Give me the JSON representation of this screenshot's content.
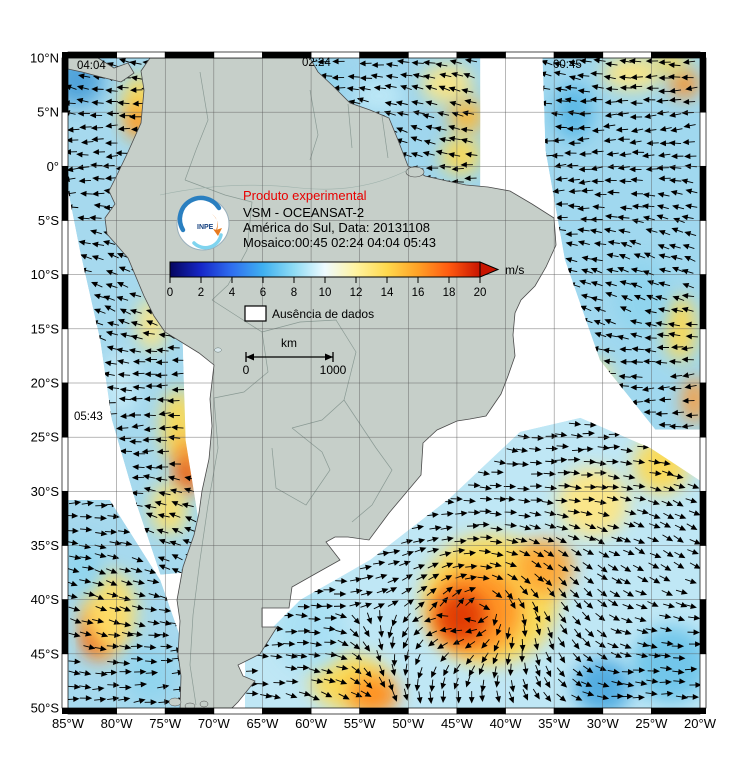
{
  "map": {
    "pass_times": {
      "p0404": "04:04",
      "p0224": "02:24",
      "p0045": "00:45",
      "p0543": "05:43"
    },
    "lat_labels": [
      "10°N",
      "5°N",
      "0°",
      "5°S",
      "10°S",
      "15°S",
      "20°S",
      "25°S",
      "30°S",
      "35°S",
      "40°S",
      "45°S",
      "50°S"
    ],
    "lon_labels": [
      "85°W",
      "80°W",
      "75°W",
      "70°W",
      "65°W",
      "60°W",
      "55°W",
      "50°W",
      "45°W",
      "40°W",
      "35°W",
      "30°W",
      "25°W",
      "20°W"
    ],
    "colorbar_ticks": [
      "0",
      "2",
      "4",
      "6",
      "8",
      "10",
      "12",
      "14",
      "16",
      "18",
      "20"
    ],
    "legend": {
      "experimental": "Produto experimental",
      "line1": "VSM - OCEANSAT-2",
      "line2": "América do Sul, Data: 20131108",
      "line3": "Mosaico:00:45 02:24 04:04 05:43",
      "units": "m/s",
      "nodata": "Ausência de dados",
      "km": "km",
      "scale0": "0",
      "scale1": "1000",
      "logo_text": "INPE"
    },
    "colors": {
      "experimental_text": "#e80000",
      "land": "#c6cfc9",
      "nodata_fill": "#ffffff"
    }
  },
  "chart_data": {
    "type": "map",
    "title": "VSM - OCEANSAT-2 sea-surface wind mosaic, South America, 2013-11-08",
    "projection": {
      "lon_range": [
        -85,
        -20
      ],
      "lat_range": [
        -50,
        10
      ],
      "grid_deg": 5
    },
    "wind_speed_scale": {
      "units": "m/s",
      "min": 0,
      "max": 20,
      "tick_step": 2,
      "palette": [
        [
          "0",
          "#05055e"
        ],
        [
          "2",
          "#1627c8"
        ],
        [
          "4",
          "#2f6ff0"
        ],
        [
          "6",
          "#3fb0f0"
        ],
        [
          "8",
          "#8fdcf4"
        ],
        [
          "10",
          "#eefaff"
        ],
        [
          "12",
          "#fff3a0"
        ],
        [
          "14",
          "#ffd94d"
        ],
        [
          "16",
          "#ffa126"
        ],
        [
          "18",
          "#ff5a10"
        ],
        [
          "20",
          "#c81400"
        ]
      ]
    },
    "swaths": [
      {
        "time": "04:04",
        "base": "#a6d9ee",
        "flow": 190,
        "polygon": [
          [
            -85,
            10
          ],
          [
            -67.3,
            10
          ],
          [
            -69.9,
            2.4
          ],
          [
            -71.9,
            -6.8
          ],
          [
            -73.2,
            -16
          ],
          [
            -72.9,
            -25.3
          ],
          [
            -71.4,
            -33.6
          ],
          [
            -70.4,
            -37.3
          ],
          [
            -75.5,
            -37.7
          ],
          [
            -78.1,
            -30.8
          ],
          [
            -80.5,
            -23.4
          ],
          [
            -81.7,
            -16
          ],
          [
            -83.8,
            -7.7
          ],
          [
            -85,
            -2.2
          ]
        ],
        "blobs": [
          [
            -84,
            8,
            2.6,
            2.4,
            "#4a9fd8"
          ],
          [
            -77.6,
            5.8,
            1.8,
            2.6,
            "#ffd94d"
          ],
          [
            -77.9,
            4.1,
            1.1,
            1.6,
            "#ff8c1a"
          ],
          [
            -74.6,
            -10,
            1.3,
            3,
            "#86d3ec"
          ],
          [
            -76.4,
            -14.6,
            1.5,
            2.4,
            "#ffe680"
          ],
          [
            -73.6,
            -24,
            1.8,
            3.4,
            "#ffd94d"
          ],
          [
            -72.7,
            -27.6,
            1.3,
            2.6,
            "#ff8c1a"
          ],
          [
            -72.9,
            -28.6,
            0.7,
            1.4,
            "#e03500"
          ],
          [
            -74.6,
            -31.6,
            1.8,
            2.4,
            "#ffe066"
          ],
          [
            -79.6,
            -20,
            1.6,
            3,
            "#c8ecf8"
          ]
        ]
      },
      {
        "time": "02:24",
        "base": "#9fd6ee",
        "flow": 183,
        "polygon": [
          [
            -70.9,
            10
          ],
          [
            -42.6,
            10
          ],
          [
            -42.6,
            -2.6
          ],
          [
            -50.9,
            -1.7
          ],
          [
            -58.1,
            3.4
          ],
          [
            -66.3,
            5.2
          ],
          [
            -70.9,
            6.6
          ]
        ],
        "blobs": [
          [
            -46,
            7.6,
            2.6,
            1.8,
            "#ffe680"
          ],
          [
            -44,
            4.6,
            1.8,
            1.6,
            "#ffb833"
          ],
          [
            -44.6,
            1,
            2,
            1.8,
            "#ffd94d"
          ],
          [
            -60,
            8,
            3,
            1.6,
            "#8fd4ee"
          ],
          [
            -53,
            6.5,
            2.5,
            1.5,
            "#bfe9f7"
          ]
        ]
      },
      {
        "time": "00:45",
        "base": "#a0d8ef",
        "flow": 187,
        "polygon": [
          [
            -36.2,
            10
          ],
          [
            -20,
            10
          ],
          [
            -20,
            -24.3
          ],
          [
            -24.6,
            -24.3
          ],
          [
            -30.3,
            -17.9
          ],
          [
            -33.9,
            -8.6
          ],
          [
            -35.9,
            1.5
          ]
        ],
        "blobs": [
          [
            -27,
            8.6,
            3,
            1.6,
            "#ffe680"
          ],
          [
            -21.6,
            7.6,
            1.5,
            1.3,
            "#ff8c1a"
          ],
          [
            -23,
            9.6,
            1.8,
            1,
            "#ffd94d"
          ],
          [
            -33,
            5,
            2,
            2.6,
            "#59b7e6"
          ],
          [
            -22,
            -15,
            1.6,
            3,
            "#ffd94d"
          ],
          [
            -20.6,
            -21.6,
            1.2,
            2.2,
            "#ff9933"
          ],
          [
            -26,
            -12,
            2.6,
            3.6,
            "#8fd4ee"
          ],
          [
            -30.6,
            -20,
            1.6,
            2.2,
            "#ffe680"
          ]
        ]
      },
      {
        "time": "00:45",
        "base": "#bfe7f5",
        "flow": 15,
        "vortex": {
          "center": [
            -42.5,
            -41
          ],
          "radius_deg": 14
        },
        "polygon": [
          [
            -20,
            -29
          ],
          [
            -20,
            -50.2
          ],
          [
            -66.8,
            -50.2
          ],
          [
            -66.8,
            -45.1
          ],
          [
            -61.1,
            -40
          ],
          [
            -53.9,
            -36.3
          ],
          [
            -45.7,
            -30.6
          ],
          [
            -38.5,
            -24.5
          ],
          [
            -32.3,
            -23.2
          ],
          [
            -25.1,
            -26
          ]
        ],
        "blobs": [
          [
            -41.6,
            -40,
            7,
            6,
            "#ffd94d"
          ],
          [
            -43,
            -41,
            4.6,
            4,
            "#ff9122"
          ],
          [
            -44.6,
            -41.6,
            2.6,
            2.4,
            "#e03500"
          ],
          [
            -36,
            -37,
            3,
            2.6,
            "#ffa533"
          ],
          [
            -31,
            -31,
            3.6,
            3.2,
            "#ffe680"
          ],
          [
            -24,
            -27.6,
            2.8,
            2.6,
            "#ffd94d"
          ],
          [
            -23,
            -46,
            4,
            3.6,
            "#6cc4ea"
          ],
          [
            -30,
            -48,
            3,
            2.6,
            "#4aa8e0"
          ],
          [
            -56,
            -47.6,
            4,
            2.6,
            "#ffd94d"
          ],
          [
            -53.6,
            -48.8,
            2.6,
            1.8,
            "#ff8c1a"
          ],
          [
            -60,
            -43,
            3.6,
            3.6,
            "#a8e0f4"
          ]
        ]
      },
      {
        "time": "05:43",
        "base": "#a6d9ee",
        "flow": 5,
        "polygon": [
          [
            -85,
            -30.8
          ],
          [
            -80.7,
            -30.8
          ],
          [
            -75.5,
            -38.2
          ],
          [
            -73,
            -44.6
          ],
          [
            -73,
            -50.2
          ],
          [
            -85,
            -50.2
          ]
        ],
        "blobs": [
          [
            -81.7,
            -42.8,
            2,
            2.8,
            "#ff9122"
          ],
          [
            -82.3,
            -43.6,
            0.8,
            1.2,
            "#e03500"
          ],
          [
            -80.6,
            -41,
            2.6,
            3.6,
            "#ffe066"
          ],
          [
            -83.5,
            -37,
            2,
            2.5,
            "#8fd4ee"
          ],
          [
            -76.5,
            -47,
            2.5,
            2.5,
            "#8fd4ee"
          ]
        ]
      }
    ]
  }
}
